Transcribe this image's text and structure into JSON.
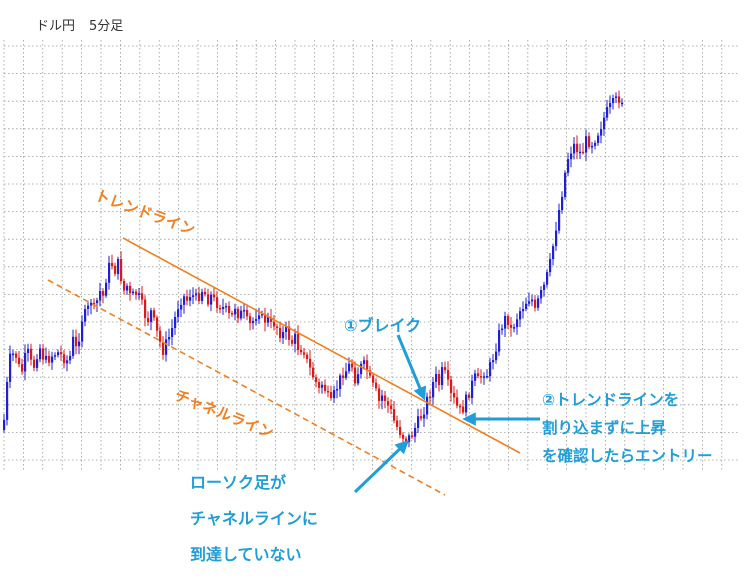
{
  "header": {
    "pair": "ドル円",
    "timeframe": "5分足"
  },
  "colors": {
    "bull": "#1f1fd6",
    "bear": "#d91a1a",
    "grid": "#9a9a9a",
    "trendline": "#f07f1e",
    "annotation": "#1f9ed8"
  },
  "annotations": {
    "trendline_label": "トレンドライン",
    "channel_label": "チャネルライン",
    "break_label": "①ブレイク",
    "entry_lines": [
      "②トレンドラインを",
      "割り込まずに上昇",
      "を確認したらエントリー"
    ],
    "candle_note_lines": [
      "ローソク足が",
      "チャネルラインに",
      "到達していない"
    ]
  },
  "chart_data": {
    "type": "candlestick",
    "title": "ドル円 5分足",
    "xlabel": "",
    "ylabel": "",
    "grid": true,
    "axes_shown": false,
    "price_path": [
      [
        0,
        450
      ],
      [
        4,
        410
      ],
      [
        8,
        360
      ],
      [
        14,
        352
      ],
      [
        20,
        375
      ],
      [
        26,
        350
      ],
      [
        32,
        370
      ],
      [
        38,
        345
      ],
      [
        44,
        362
      ],
      [
        50,
        356
      ],
      [
        56,
        352
      ],
      [
        62,
        357
      ],
      [
        68,
        362
      ],
      [
        72,
        340
      ],
      [
        76,
        352
      ],
      [
        80,
        320
      ],
      [
        86,
        312
      ],
      [
        90,
        300
      ],
      [
        94,
        312
      ],
      [
        98,
        290
      ],
      [
        102,
        296
      ],
      [
        106,
        272
      ],
      [
        110,
        262
      ],
      [
        114,
        270
      ],
      [
        118,
        262
      ],
      [
        122,
        292
      ],
      [
        126,
        286
      ],
      [
        130,
        300
      ],
      [
        134,
        292
      ],
      [
        138,
        298
      ],
      [
        142,
        308
      ],
      [
        146,
        322
      ],
      [
        150,
        312
      ],
      [
        154,
        326
      ],
      [
        158,
        340
      ],
      [
        162,
        350
      ],
      [
        166,
        342
      ],
      [
        170,
        332
      ],
      [
        174,
        318
      ],
      [
        178,
        302
      ],
      [
        182,
        296
      ],
      [
        186,
        300
      ],
      [
        190,
        292
      ],
      [
        194,
        300
      ],
      [
        198,
        295
      ],
      [
        202,
        288
      ],
      [
        206,
        300
      ],
      [
        210,
        296
      ],
      [
        214,
        302
      ],
      [
        218,
        304
      ],
      [
        222,
        308
      ],
      [
        226,
        312
      ],
      [
        230,
        320
      ],
      [
        234,
        306
      ],
      [
        238,
        316
      ],
      [
        242,
        312
      ],
      [
        246,
        322
      ],
      [
        250,
        326
      ],
      [
        254,
        316
      ],
      [
        258,
        310
      ],
      [
        262,
        322
      ],
      [
        266,
        318
      ],
      [
        270,
        326
      ],
      [
        274,
        322
      ],
      [
        278,
        332
      ],
      [
        282,
        334
      ],
      [
        286,
        330
      ],
      [
        290,
        344
      ],
      [
        294,
        338
      ],
      [
        298,
        350
      ],
      [
        302,
        346
      ],
      [
        306,
        362
      ],
      [
        310,
        372
      ],
      [
        314,
        380
      ],
      [
        318,
        390
      ],
      [
        322,
        382
      ],
      [
        326,
        396
      ],
      [
        330,
        404
      ],
      [
        334,
        392
      ],
      [
        338,
        382
      ],
      [
        342,
        372
      ],
      [
        346,
        370
      ],
      [
        350,
        362
      ],
      [
        354,
        378
      ],
      [
        358,
        370
      ],
      [
        362,
        364
      ],
      [
        366,
        370
      ],
      [
        370,
        384
      ],
      [
        374,
        390
      ],
      [
        378,
        402
      ],
      [
        382,
        394
      ],
      [
        386,
        404
      ],
      [
        390,
        412
      ],
      [
        394,
        424
      ],
      [
        398,
        430
      ],
      [
        402,
        436
      ],
      [
        406,
        440
      ],
      [
        410,
        436
      ],
      [
        414,
        428
      ],
      [
        418,
        420
      ],
      [
        422,
        412
      ],
      [
        426,
        400
      ],
      [
        430,
        390
      ],
      [
        434,
        376
      ],
      [
        438,
        384
      ],
      [
        442,
        368
      ],
      [
        446,
        382
      ],
      [
        450,
        396
      ],
      [
        454,
        402
      ],
      [
        458,
        412
      ],
      [
        462,
        408
      ],
      [
        466,
        398
      ],
      [
        470,
        386
      ],
      [
        474,
        378
      ],
      [
        478,
        382
      ],
      [
        482,
        370
      ],
      [
        486,
        374
      ],
      [
        490,
        364
      ],
      [
        494,
        350
      ],
      [
        498,
        334
      ],
      [
        502,
        322
      ],
      [
        506,
        316
      ],
      [
        510,
        330
      ],
      [
        514,
        322
      ],
      [
        518,
        312
      ],
      [
        522,
        306
      ],
      [
        526,
        300
      ],
      [
        530,
        296
      ],
      [
        534,
        312
      ],
      [
        538,
        298
      ],
      [
        542,
        290
      ],
      [
        546,
        276
      ],
      [
        550,
        260
      ],
      [
        554,
        232
      ],
      [
        558,
        210
      ],
      [
        562,
        186
      ],
      [
        566,
        160
      ],
      [
        570,
        150
      ],
      [
        574,
        144
      ],
      [
        578,
        154
      ],
      [
        582,
        150
      ],
      [
        586,
        138
      ],
      [
        590,
        144
      ],
      [
        594,
        138
      ],
      [
        598,
        130
      ],
      [
        602,
        120
      ],
      [
        606,
        112
      ],
      [
        610,
        106
      ],
      [
        614,
        102
      ],
      [
        618,
        98
      ],
      [
        622,
        100
      ]
    ],
    "lines": [
      {
        "name": "トレンドライン",
        "style": "solid",
        "from": [
          123,
          238
        ],
        "to": [
          520,
          453
        ]
      },
      {
        "name": "チャネルライン",
        "style": "dashed",
        "from": [
          48,
          280
        ],
        "to": [
          445,
          495
        ]
      }
    ],
    "arrows": [
      {
        "from": [
          398,
          335
        ],
        "to": [
          424,
          398
        ]
      },
      {
        "from": [
          540,
          419
        ],
        "to": [
          465,
          419
        ]
      },
      {
        "from": [
          355,
          492
        ],
        "to": [
          407,
          442
        ]
      }
    ]
  }
}
